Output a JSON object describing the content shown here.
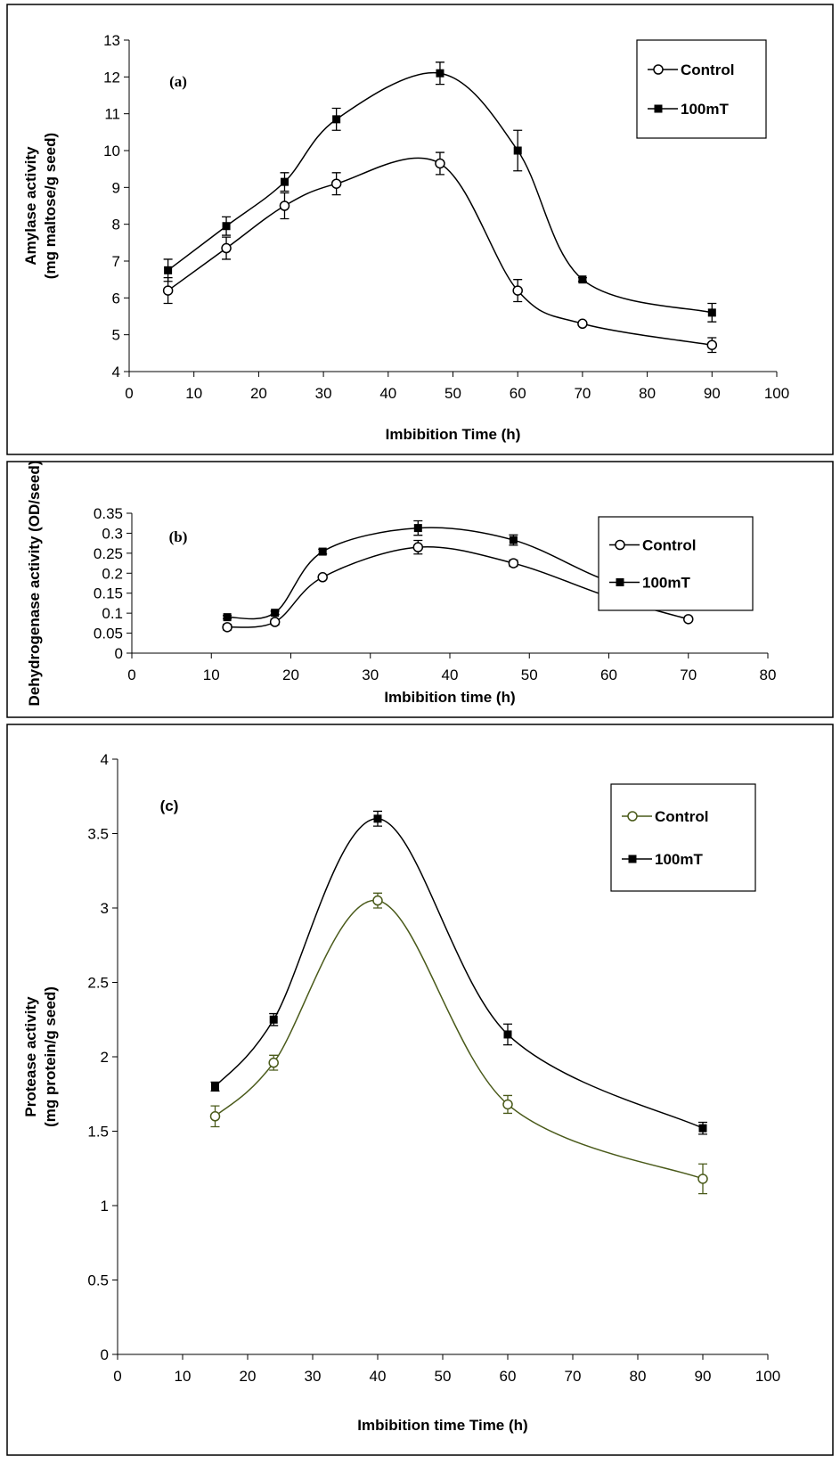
{
  "chart_data": [
    {
      "type": "line",
      "label": "(a)",
      "x_label": "Imbibition Time (h)",
      "y_label": [
        "Amylase activity",
        "(mg maltose/g seed)"
      ],
      "x": [
        6,
        15,
        24,
        32,
        48,
        60,
        70,
        90
      ],
      "series": [
        {
          "name": "Control",
          "color": "#000000",
          "marker": "circle",
          "values": [
            6.2,
            7.35,
            8.5,
            9.1,
            9.65,
            6.2,
            5.3,
            4.72
          ],
          "errors": [
            0.35,
            0.3,
            0.35,
            0.3,
            0.3,
            0.3,
            0.05,
            0.2
          ]
        },
        {
          "name": "100mT",
          "color": "#000000",
          "marker": "square",
          "values": [
            6.75,
            7.95,
            9.15,
            10.85,
            12.1,
            10.0,
            6.5,
            5.6
          ],
          "errors": [
            0.3,
            0.25,
            0.25,
            0.3,
            0.3,
            0.55,
            0.05,
            0.25
          ]
        }
      ],
      "xlim": [
        0,
        100
      ],
      "xticks": [
        0,
        10,
        20,
        30,
        40,
        50,
        60,
        70,
        80,
        90,
        100
      ],
      "ylim": [
        4,
        13
      ],
      "yticks": [
        4,
        5,
        6,
        7,
        8,
        9,
        10,
        11,
        12,
        13
      ]
    },
    {
      "type": "line",
      "label": "(b)",
      "x_label": "Imbibition time (h)",
      "y_label": [
        "Dehydrogenase activity (OD/seed)"
      ],
      "x": [
        12,
        18,
        24,
        36,
        48,
        60,
        70
      ],
      "series": [
        {
          "name": "Control",
          "color": "#000000",
          "marker": "circle",
          "values": [
            0.065,
            0.078,
            0.19,
            0.265,
            0.225,
            0.141,
            0.085
          ],
          "errors": [
            0.007,
            0.007,
            0.005,
            0.017,
            0.008,
            0.018,
            0.004
          ]
        },
        {
          "name": "100mT",
          "color": "#000000",
          "marker": "square",
          "values": [
            0.09,
            0.101,
            0.254,
            0.313,
            0.283,
            0.18,
            0.14
          ],
          "errors": [
            0.004,
            0.004,
            0.006,
            0.018,
            0.013,
            0.004,
            0.003
          ]
        }
      ],
      "xlim": [
        0,
        80
      ],
      "xticks": [
        0,
        10,
        20,
        30,
        40,
        50,
        60,
        70,
        80
      ],
      "ylim": [
        0,
        0.35
      ],
      "yticks": [
        0,
        0.05,
        0.1,
        0.15,
        0.2,
        0.25,
        0.3,
        0.35
      ]
    },
    {
      "type": "line",
      "label": "(c)",
      "x_label": "Imbibition time Time (h)",
      "y_label": [
        "Protease activity",
        "(mg protein/g seed)"
      ],
      "x": [
        15,
        24,
        40,
        60,
        90
      ],
      "series": [
        {
          "name": "Control",
          "color": "#4a5a1a",
          "marker": "circle",
          "values": [
            1.6,
            1.96,
            3.05,
            1.68,
            1.18
          ],
          "errors": [
            0.07,
            0.05,
            0.05,
            0.06,
            0.1
          ]
        },
        {
          "name": "100mT",
          "color": "#000000",
          "marker": "square",
          "values": [
            1.8,
            2.25,
            3.6,
            2.15,
            1.52
          ],
          "errors": [
            0.03,
            0.04,
            0.05,
            0.07,
            0.04
          ]
        }
      ],
      "xlim": [
        0,
        100
      ],
      "xticks": [
        0,
        10,
        20,
        30,
        40,
        50,
        60,
        70,
        80,
        90,
        100
      ],
      "ylim": [
        0,
        4
      ],
      "yticks": [
        0,
        0.5,
        1,
        1.5,
        2,
        2.5,
        3,
        3.5,
        4
      ]
    }
  ]
}
